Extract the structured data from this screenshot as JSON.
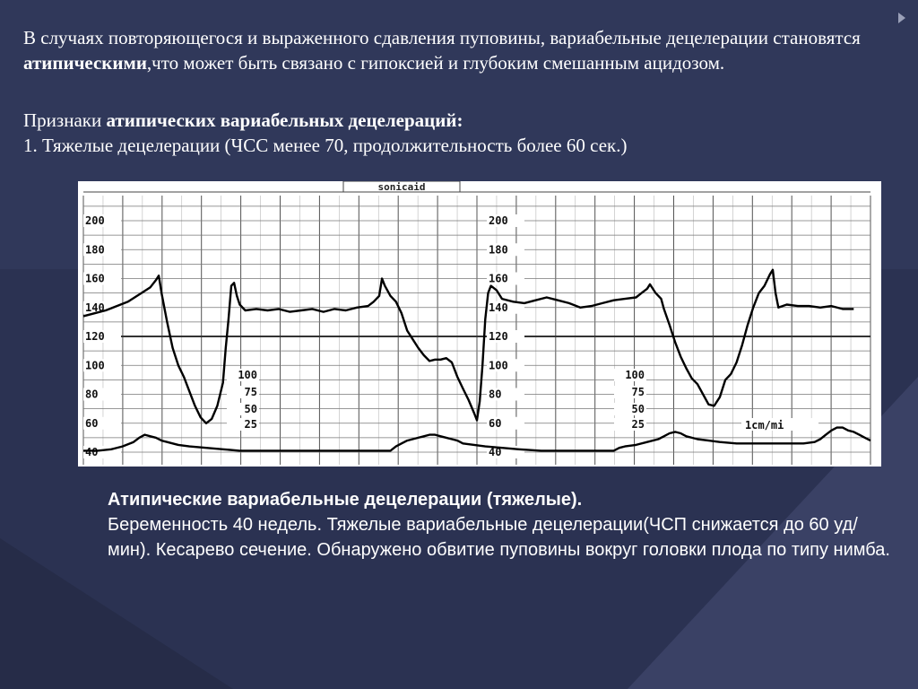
{
  "intro": {
    "part1": "В случаях повторяющегося и выраженного сдавления пуповины, вариабельные децелерации становятся ",
    "bold": "атипическими",
    "part2": ",что может быть связано с гипоксией и глубоким смешанным ацидозом."
  },
  "signs": {
    "label": "Признаки ",
    "bold": "атипических вариабельных децелераций:",
    "item1": "1. Тяжелые децелерации (ЧСС менее 70, продолжительность более 60 сек.)"
  },
  "caption": {
    "title": "Атипические вариабельные децелерации (тяжелые).",
    "body": "Беременность 40 недель. Тяжелые вариабельные децелерации(ЧСП снижается до 60 уд/мин). Кесарево сечение. Обнаружено обвитие пуповины вокруг головки плода по типу нимба."
  },
  "chart_data": {
    "type": "line",
    "header_label": "sonicaid",
    "speed_label": "1cm/mi",
    "fhr_scale": {
      "ylim": [
        40,
        210
      ],
      "ticks": [
        "200",
        "180",
        "160",
        "140",
        "120",
        "100",
        "80",
        "60",
        "40"
      ]
    },
    "toco_scale": {
      "ticks": [
        "100",
        "75",
        "50",
        "25"
      ]
    },
    "series": [
      {
        "values": [
          [
            0,
            134
          ],
          [
            4,
            136
          ],
          [
            8,
            138
          ],
          [
            12,
            141
          ],
          [
            16,
            144
          ],
          [
            20,
            149
          ],
          [
            24,
            154
          ],
          [
            26,
            159
          ],
          [
            27,
            162
          ],
          [
            28,
            150
          ],
          [
            30,
            130
          ],
          [
            32,
            112
          ],
          [
            34,
            100
          ],
          [
            36,
            92
          ],
          [
            38,
            82
          ],
          [
            40,
            72
          ],
          [
            42,
            64
          ],
          [
            44,
            60
          ],
          [
            46,
            63
          ],
          [
            48,
            72
          ],
          [
            50,
            88
          ],
          [
            51,
            112
          ],
          [
            52,
            132
          ],
          [
            53,
            155
          ],
          [
            54,
            157
          ],
          [
            55,
            148
          ],
          [
            56,
            142
          ],
          [
            58,
            138
          ],
          [
            62,
            139
          ],
          [
            66,
            138
          ],
          [
            70,
            139
          ],
          [
            74,
            137
          ],
          [
            78,
            138
          ],
          [
            82,
            139
          ],
          [
            86,
            137
          ],
          [
            90,
            139
          ],
          [
            94,
            138
          ],
          [
            98,
            140
          ],
          [
            102,
            141
          ],
          [
            104,
            144
          ],
          [
            106,
            148
          ],
          [
            107,
            160
          ],
          [
            108,
            155
          ],
          [
            110,
            148
          ],
          [
            112,
            144
          ],
          [
            114,
            136
          ],
          [
            116,
            124
          ],
          [
            118,
            118
          ],
          [
            120,
            112
          ],
          [
            122,
            107
          ],
          [
            124,
            103
          ],
          [
            126,
            104
          ],
          [
            128,
            104
          ],
          [
            130,
            105
          ],
          [
            132,
            102
          ],
          [
            134,
            92
          ],
          [
            136,
            84
          ],
          [
            138,
            76
          ],
          [
            140,
            67
          ],
          [
            141,
            62
          ],
          [
            142,
            75
          ],
          [
            143,
            100
          ],
          [
            144,
            132
          ],
          [
            145,
            150
          ],
          [
            146,
            155
          ],
          [
            148,
            152
          ],
          [
            150,
            146
          ],
          [
            154,
            144
          ],
          [
            158,
            143
          ],
          [
            162,
            145
          ],
          [
            166,
            147
          ],
          [
            170,
            145
          ],
          [
            174,
            143
          ],
          [
            178,
            140
          ],
          [
            182,
            141
          ],
          [
            186,
            143
          ],
          [
            190,
            145
          ],
          [
            194,
            146
          ],
          [
            198,
            147
          ],
          [
            200,
            150
          ],
          [
            202,
            153
          ],
          [
            203,
            156
          ],
          [
            205,
            150
          ],
          [
            207,
            146
          ],
          [
            208,
            139
          ],
          [
            210,
            128
          ],
          [
            212,
            116
          ],
          [
            214,
            106
          ],
          [
            216,
            98
          ],
          [
            218,
            91
          ],
          [
            220,
            87
          ],
          [
            222,
            80
          ],
          [
            224,
            73
          ],
          [
            226,
            72
          ],
          [
            228,
            78
          ],
          [
            230,
            90
          ],
          [
            232,
            94
          ],
          [
            234,
            102
          ],
          [
            236,
            114
          ],
          [
            238,
            128
          ],
          [
            240,
            140
          ],
          [
            242,
            150
          ],
          [
            244,
            155
          ],
          [
            246,
            163
          ],
          [
            247,
            166
          ],
          [
            248,
            150
          ],
          [
            249,
            140
          ],
          [
            252,
            142
          ],
          [
            256,
            141
          ],
          [
            260,
            141
          ],
          [
            264,
            140
          ],
          [
            268,
            141
          ],
          [
            272,
            139
          ],
          [
            276,
            139
          ]
        ],
        "name": ""
      },
      {
        "values": [
          [
            0,
            41
          ],
          [
            5,
            41
          ],
          [
            10,
            42
          ],
          [
            14,
            44
          ],
          [
            18,
            47
          ],
          [
            20,
            50
          ],
          [
            22,
            52
          ],
          [
            24,
            51
          ],
          [
            26,
            50
          ],
          [
            28,
            48
          ],
          [
            30,
            47
          ],
          [
            32,
            46
          ],
          [
            34,
            45
          ],
          [
            38,
            44
          ],
          [
            44,
            43
          ],
          [
            50,
            42
          ],
          [
            56,
            41
          ],
          [
            62,
            41
          ],
          [
            70,
            41
          ],
          [
            80,
            41
          ],
          [
            90,
            41
          ],
          [
            100,
            41
          ],
          [
            110,
            41
          ],
          [
            112,
            44
          ],
          [
            114,
            46
          ],
          [
            116,
            48
          ],
          [
            118,
            49
          ],
          [
            120,
            50
          ],
          [
            122,
            51
          ],
          [
            124,
            52
          ],
          [
            126,
            52
          ],
          [
            128,
            51
          ],
          [
            130,
            50
          ],
          [
            132,
            49
          ],
          [
            134,
            48
          ],
          [
            136,
            46
          ],
          [
            140,
            45
          ],
          [
            144,
            44
          ],
          [
            150,
            43
          ],
          [
            156,
            42
          ],
          [
            164,
            41
          ],
          [
            172,
            41
          ],
          [
            182,
            41
          ],
          [
            190,
            41
          ],
          [
            192,
            43
          ],
          [
            194,
            44
          ],
          [
            198,
            45
          ],
          [
            202,
            47
          ],
          [
            206,
            49
          ],
          [
            208,
            51
          ],
          [
            210,
            53
          ],
          [
            212,
            54
          ],
          [
            214,
            53
          ],
          [
            216,
            51
          ],
          [
            218,
            50
          ],
          [
            220,
            49
          ],
          [
            224,
            48
          ],
          [
            228,
            47
          ],
          [
            234,
            46
          ],
          [
            240,
            46
          ],
          [
            246,
            46
          ],
          [
            254,
            46
          ],
          [
            258,
            46
          ],
          [
            262,
            47
          ],
          [
            264,
            49
          ],
          [
            266,
            52
          ],
          [
            268,
            55
          ],
          [
            270,
            57
          ],
          [
            272,
            57
          ],
          [
            274,
            55
          ],
          [
            276,
            54
          ],
          [
            278,
            52
          ],
          [
            280,
            50
          ],
          [
            282,
            48
          ]
        ],
        "name": ""
      }
    ]
  }
}
